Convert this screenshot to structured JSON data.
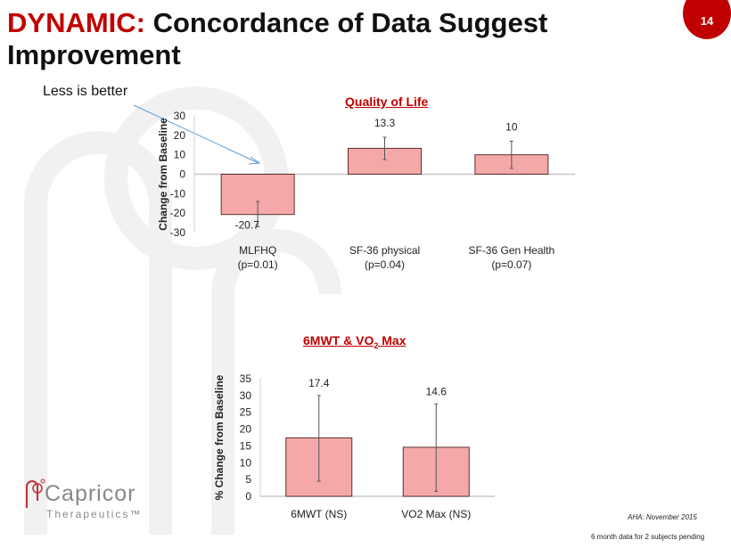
{
  "slide": {
    "title_accent": "DYNAMIC:",
    "title_rest": " Concordance of Data Suggest Improvement",
    "page_number": "14",
    "annotation": "Less is better",
    "footnote_source": "AHA: November  2015",
    "footnote_pending": "6 month data for 2 subjects pending",
    "logo_name": "Capricor",
    "logo_sub": "Therapeutics™",
    "colors": {
      "accent": "#c00000",
      "bar": "#f4a9a8",
      "bar_border": "#5a3030"
    }
  },
  "chart_data": [
    {
      "type": "bar",
      "title": "Quality of Life",
      "ylabel": "Change from Baseline",
      "xlabel": "",
      "ylim": [
        -30,
        30
      ],
      "yticks": [
        30,
        20,
        10,
        0,
        -10,
        -20,
        -30
      ],
      "categories": [
        "MLFHQ",
        "SF-36 physical",
        "SF-36 Gen Health"
      ],
      "category_sublabels": [
        "(p=0.01)",
        "(p=0.04)",
        "(p=0.07)"
      ],
      "values": [
        -20.7,
        13.3,
        10
      ],
      "data_labels": [
        "-20.7",
        "13.3",
        "10"
      ],
      "error_low": [
        -27,
        7.5,
        3
      ],
      "error_high": [
        -14,
        19,
        17
      ],
      "grid": false
    },
    {
      "type": "bar",
      "title_main": "6MWT & VO",
      "title_sub": "2",
      "title_end": " Max",
      "ylabel": "% Change from Baseline",
      "xlabel": "",
      "ylim": [
        0,
        35
      ],
      "yticks": [
        35,
        30,
        25,
        20,
        15,
        10,
        5,
        0
      ],
      "categories": [
        "6MWT (NS)",
        "VO2 Max (NS)"
      ],
      "values": [
        17.4,
        14.6
      ],
      "data_labels": [
        "17.4",
        "14.6"
      ],
      "error_low": [
        4.5,
        1.5
      ],
      "error_high": [
        30,
        27.5
      ],
      "grid": false
    }
  ]
}
